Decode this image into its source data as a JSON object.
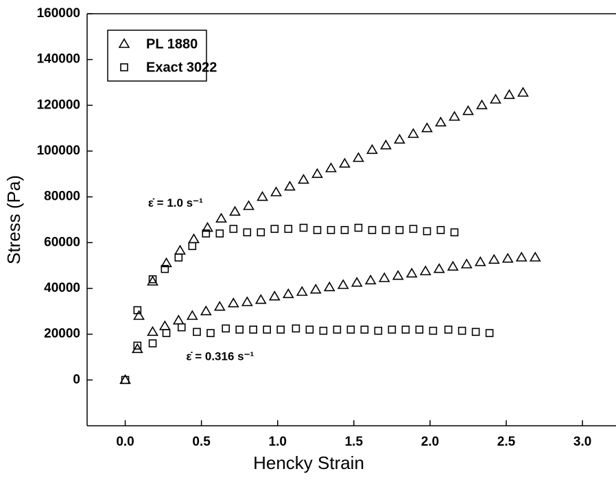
{
  "chart_data": {
    "type": "scatter",
    "x_label": "Hencky Strain",
    "y_label": "Stress (Pa)",
    "xlim": [
      -0.25,
      3.22
    ],
    "xticks": [
      {
        "value": 0,
        "label": "0.0"
      },
      0.5,
      {
        "value": 1,
        "label": "1.0"
      },
      1.5,
      {
        "value": 2,
        "label": "2.0"
      },
      2.5,
      {
        "value": 3,
        "label": "3.0"
      }
    ],
    "ylim": [
      -20000,
      160000
    ],
    "yticks": [
      0,
      20000,
      40000,
      60000,
      80000,
      100000,
      120000,
      140000,
      160000
    ],
    "annotations": [
      {
        "text": "ε̇ = 1.0 s⁻¹",
        "x": 0.15,
        "y": 77000
      },
      {
        "text": "ε̇ = 0.316 s⁻¹",
        "x": 0.4,
        "y": 10000
      }
    ],
    "legend": "upper left",
    "series": [
      {
        "name": "PL 1880",
        "marker": "triangle",
        "color": "#000000",
        "groups": [
          {
            "x": [
              0.0,
              0.18,
              0.27,
              0.36,
              0.45,
              0.54,
              0.63,
              0.72,
              0.81,
              0.9,
              0.99,
              1.08,
              1.17,
              1.26,
              1.35,
              1.44,
              1.53,
              1.62,
              1.71,
              1.8,
              1.89,
              1.98,
              2.07,
              2.16,
              2.25,
              2.34,
              2.43,
              2.52,
              2.61
            ],
            "values": [
              0,
              43000,
              51000,
              56500,
              61500,
              66500,
              70500,
              73500,
              76000,
              80000,
              82000,
              84500,
              87500,
              90000,
              92500,
              94500,
              97000,
              100500,
              102500,
              105000,
              107500,
              110000,
              112500,
              115000,
              117500,
              120000,
              122500,
              124500,
              125500
            ]
          },
          {
            "x": [
              0.08,
              0.09,
              0.18,
              0.26,
              0.35,
              0.44,
              0.53,
              0.62,
              0.71,
              0.8,
              0.89,
              0.98,
              1.07,
              1.16,
              1.25,
              1.34,
              1.43,
              1.52,
              1.61,
              1.7,
              1.79,
              1.88,
              1.97,
              2.06,
              2.15,
              2.24,
              2.33,
              2.42,
              2.51,
              2.6,
              2.69
            ],
            "values": [
              13500,
              28000,
              21000,
              23500,
              26000,
              28000,
              30000,
              32000,
              33500,
              34000,
              35000,
              36500,
              37500,
              38500,
              39500,
              40500,
              41500,
              42500,
              43500,
              44500,
              45500,
              46500,
              47500,
              48500,
              49500,
              50500,
              51500,
              52500,
              53000,
              53500,
              53500
            ]
          }
        ]
      },
      {
        "name": "Exact 3022",
        "marker": "square",
        "color": "#000000",
        "groups": [
          {
            "x": [
              0.0,
              0.08,
              0.18,
              0.26,
              0.35,
              0.44,
              0.53,
              0.62,
              0.71,
              0.8,
              0.89,
              0.98,
              1.07,
              1.17,
              1.26,
              1.35,
              1.44,
              1.53,
              1.62,
              1.71,
              1.8,
              1.89,
              1.98,
              2.07,
              2.16
            ],
            "values": [
              0,
              30500,
              44000,
              48500,
              53500,
              58500,
              64000,
              64000,
              66000,
              64500,
              64500,
              66000,
              66000,
              66500,
              65500,
              65500,
              65500,
              66500,
              65500,
              65500,
              65500,
              66000,
              65000,
              65500,
              64500
            ]
          },
          {
            "x": [
              0.08,
              0.18,
              0.27,
              0.37,
              0.47,
              0.56,
              0.66,
              0.75,
              0.84,
              0.93,
              1.02,
              1.12,
              1.21,
              1.3,
              1.39,
              1.48,
              1.57,
              1.66,
              1.75,
              1.84,
              1.93,
              2.02,
              2.12,
              2.21,
              2.3,
              2.39
            ],
            "values": [
              15000,
              16000,
              20500,
              23000,
              21000,
              20500,
              22500,
              22000,
              22000,
              22000,
              22000,
              22500,
              22000,
              21500,
              22000,
              22000,
              22000,
              21500,
              22000,
              22000,
              22000,
              21500,
              22000,
              21500,
              21000,
              20500
            ]
          }
        ]
      }
    ]
  }
}
